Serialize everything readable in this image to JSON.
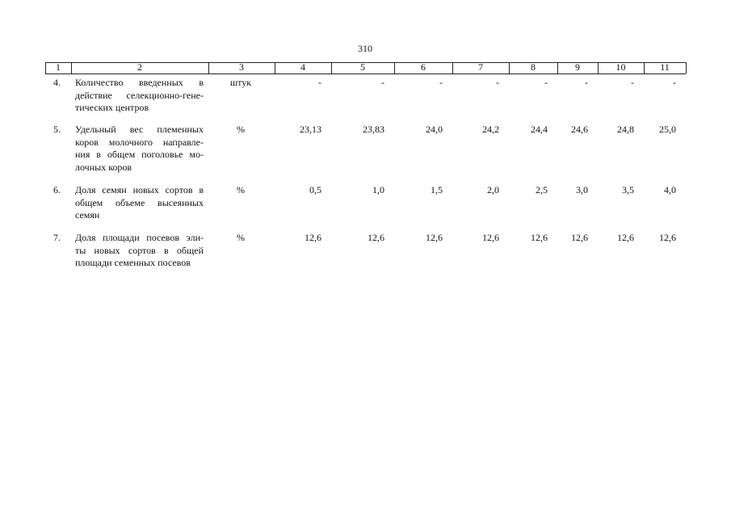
{
  "page_number": "310",
  "table": {
    "header": [
      "1",
      "2",
      "3",
      "4",
      "5",
      "6",
      "7",
      "8",
      "9",
      "10",
      "11"
    ],
    "rows": [
      {
        "number": "4.",
        "description": [
          "Количество введенных в",
          "действие селекционно-гене-",
          "тических центров"
        ],
        "unit": "штук",
        "values": [
          "-",
          "-",
          "-",
          "-",
          "-",
          "-",
          "-",
          "-"
        ]
      },
      {
        "number": "5.",
        "description": [
          "Удельный вес племенных",
          "коров молочного направле-",
          "ния в общем поголовье мо-",
          "лочных коров"
        ],
        "unit": "%",
        "values": [
          "23,13",
          "23,83",
          "24,0",
          "24,2",
          "24,4",
          "24,6",
          "24,8",
          "25,0"
        ]
      },
      {
        "number": "6.",
        "description": [
          "Доля семян новых сортов в",
          "общем объеме высеянных",
          "семян"
        ],
        "unit": "%",
        "values": [
          "0,5",
          "1,0",
          "1,5",
          "2,0",
          "2,5",
          "3,0",
          "3,5",
          "4,0"
        ]
      },
      {
        "number": "7.",
        "description": [
          "Доля площади посевов эли-",
          "ты новых сортов в общей",
          "площади семенных посевов"
        ],
        "unit": "%",
        "values": [
          "12,6",
          "12,6",
          "12,6",
          "12,6",
          "12,6",
          "12,6",
          "12,6",
          "12,6"
        ]
      }
    ]
  }
}
